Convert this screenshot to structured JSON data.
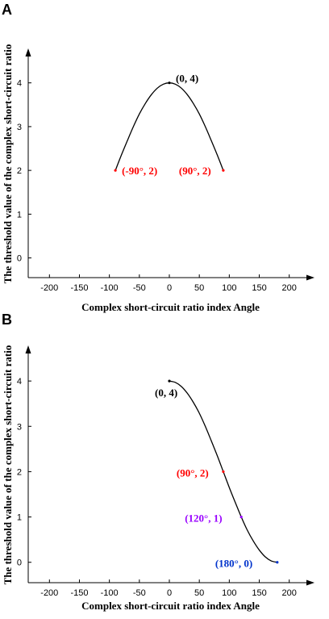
{
  "chart_data": [
    {
      "panel_label": "A",
      "type": "line",
      "xlabel": "Complex short-circuit ratio index Angle",
      "ylabel": "The threshold value of the complex short-circuit ratio",
      "xlim": [
        -230,
        230
      ],
      "ylim": [
        -0.45,
        4.75
      ],
      "xticks": [
        -200,
        -150,
        -100,
        -50,
        0,
        50,
        100,
        150,
        200
      ],
      "xtick_labels": [
        "-200",
        "-150",
        "-100",
        "-50",
        "0",
        "50",
        "100",
        "150",
        "200"
      ],
      "yticks": [
        0,
        1,
        2,
        3,
        4
      ],
      "ytick_labels": [
        "0",
        "1",
        "2",
        "3",
        "4"
      ],
      "series": [
        {
          "x": [
            -90,
            -80,
            -70,
            -60,
            -50,
            -40,
            -30,
            -20,
            -10,
            0,
            10,
            20,
            30,
            40,
            50,
            60,
            70,
            80,
            90
          ],
          "y": [
            2.0,
            2.35,
            2.68,
            3.0,
            3.29,
            3.53,
            3.73,
            3.88,
            3.97,
            4.0,
            3.97,
            3.88,
            3.73,
            3.53,
            3.29,
            3.0,
            2.68,
            2.35,
            2.0
          ],
          "color": "#000000"
        }
      ],
      "annotations": [
        {
          "text": "(0,  4)",
          "x": 0,
          "y": 4,
          "color": "#000000"
        },
        {
          "text": "(-90°,  2)",
          "x": -90,
          "y": 2,
          "color": "#ff0000"
        },
        {
          "text": "(90°,  2)",
          "x": 90,
          "y": 2,
          "color": "#ff0000"
        }
      ]
    },
    {
      "panel_label": "B",
      "type": "line",
      "xlabel": "Complex short-circuit ratio index Angle",
      "ylabel": "The threshold value of the complex short-circuit ratio",
      "xlim": [
        -230,
        230
      ],
      "ylim": [
        -0.45,
        4.75
      ],
      "xticks": [
        -200,
        -150,
        -100,
        -50,
        0,
        50,
        100,
        150,
        200
      ],
      "xtick_labels": [
        "-200",
        "-150",
        "-100",
        "-50",
        "0",
        "50",
        "100",
        "150",
        "200"
      ],
      "yticks": [
        0,
        1,
        2,
        3,
        4
      ],
      "ytick_labels": [
        "0",
        "1",
        "2",
        "3",
        "4"
      ],
      "series": [
        {
          "x": [
            0,
            10,
            20,
            30,
            40,
            50,
            60,
            70,
            80,
            90,
            100,
            110,
            120,
            130,
            140,
            150,
            160,
            170,
            180
          ],
          "y": [
            4.0,
            3.97,
            3.88,
            3.73,
            3.53,
            3.29,
            3.0,
            2.68,
            2.35,
            2.0,
            1.65,
            1.32,
            1.0,
            0.71,
            0.47,
            0.27,
            0.12,
            0.03,
            0.0
          ],
          "color": "#000000"
        }
      ],
      "annotations": [
        {
          "text": "(0,  4)",
          "x": 0,
          "y": 4,
          "color": "#000000"
        },
        {
          "text": "(90°,  2)",
          "x": 90,
          "y": 2,
          "color": "#ff0000"
        },
        {
          "text": "(120°,  1)",
          "x": 120,
          "y": 1,
          "color": "#9900ff"
        },
        {
          "text": "(180°,  0)",
          "x": 180,
          "y": 0,
          "color": "#0033cc"
        }
      ]
    }
  ]
}
